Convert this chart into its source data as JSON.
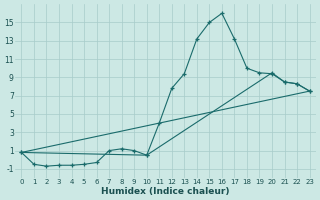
{
  "background_color": "#cce8e4",
  "grid_color": "#a8ccca",
  "line_color": "#1a6b6b",
  "marker": "+",
  "xlabel": "Humidex (Indice chaleur)",
  "xlim": [
    -0.5,
    23.5
  ],
  "ylim": [
    -2.0,
    17.0
  ],
  "xticks": [
    0,
    1,
    2,
    3,
    4,
    5,
    6,
    7,
    8,
    9,
    10,
    11,
    12,
    13,
    14,
    15,
    16,
    17,
    18,
    19,
    20,
    21,
    22,
    23
  ],
  "yticks": [
    -1,
    1,
    3,
    5,
    7,
    9,
    11,
    13,
    15
  ],
  "curve_x": [
    0,
    1,
    2,
    3,
    4,
    5,
    6,
    7,
    8,
    9,
    10,
    11,
    12,
    13,
    14,
    15,
    16,
    17,
    18,
    19,
    20,
    21,
    22,
    23
  ],
  "curve_y": [
    0.8,
    -0.5,
    -0.7,
    -0.6,
    -0.6,
    -0.5,
    -0.3,
    1.0,
    1.2,
    1.0,
    0.5,
    4.0,
    7.8,
    9.4,
    13.2,
    15.0,
    16.0,
    13.2,
    10.0,
    9.5,
    9.4,
    8.5,
    8.3,
    7.5
  ],
  "line2_x": [
    0,
    10,
    20,
    21,
    22,
    23
  ],
  "line2_y": [
    0.8,
    0.5,
    9.5,
    8.5,
    8.3,
    7.5
  ],
  "line3_x": [
    0,
    23
  ],
  "line3_y": [
    0.8,
    7.5
  ]
}
